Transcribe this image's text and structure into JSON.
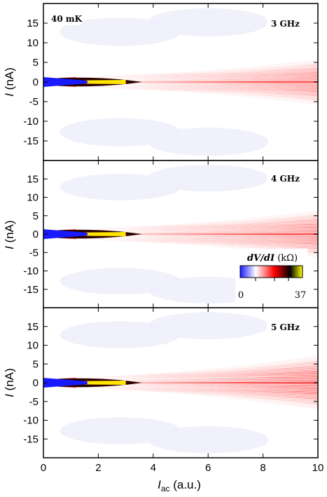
{
  "chart_data": [
    {
      "type": "heatmap",
      "panel_label": "3 GHz",
      "corner_label": "40 mK",
      "frequency_ghz": 3,
      "xlim": [
        0,
        10
      ],
      "ylim": [
        -20,
        20
      ],
      "ylabel_prefix": "I",
      "ylabel_suffix": " (nA)",
      "yticks": [
        -15,
        -10,
        -5,
        0,
        5,
        10,
        15
      ],
      "xticks": []
    },
    {
      "type": "heatmap",
      "panel_label": "4 GHz",
      "frequency_ghz": 4,
      "xlim": [
        0,
        10
      ],
      "ylim": [
        -20,
        20
      ],
      "ylabel_prefix": "I",
      "ylabel_suffix": " (nA)",
      "yticks": [
        -15,
        -10,
        -5,
        0,
        5,
        10,
        15
      ],
      "xticks": [],
      "colorbar": {
        "title_prefix": "dV/dI",
        "title_suffix": " (kΩ)",
        "min_label": "0",
        "max_label": "37",
        "range": [
          0,
          37
        ],
        "colors": [
          "#1a1aff",
          "#ffffff",
          "#ff0000",
          "#000000",
          "#ffff00"
        ]
      }
    },
    {
      "type": "heatmap",
      "panel_label": "5 GHz",
      "frequency_ghz": 5,
      "xlim": [
        0,
        10
      ],
      "ylim": [
        -20,
        20
      ],
      "ylabel_prefix": "I",
      "ylabel_suffix": " (nA)",
      "yticks": [
        -15,
        -10,
        -5,
        0,
        5,
        10,
        15
      ],
      "xticks": [
        0,
        2,
        4,
        6,
        8,
        10
      ],
      "xlabel_prefix": "I",
      "xlabel_subscript": "ac",
      "xlabel_suffix": " (a.u.)"
    }
  ]
}
